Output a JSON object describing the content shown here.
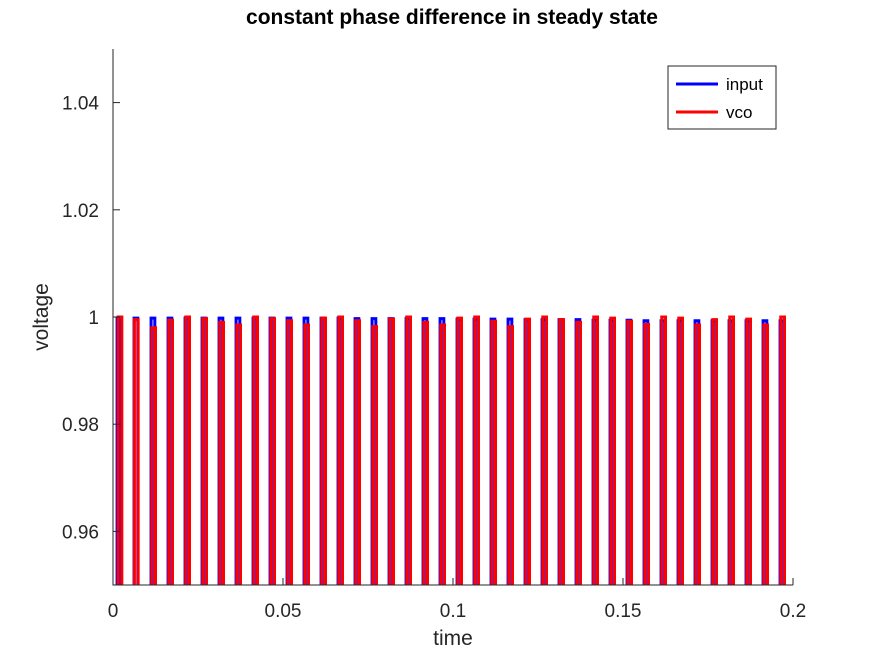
{
  "chart_data": {
    "type": "line",
    "title": "constant phase difference in steady state",
    "xlabel": "time",
    "ylabel": "voltage",
    "xlim": [
      0,
      0.2
    ],
    "ylim": [
      0.95,
      1.05
    ],
    "xticks": [
      0,
      0.05,
      0.1,
      0.15,
      0.2
    ],
    "xtick_labels": [
      "0",
      "0.05",
      "0.1",
      "0.15",
      "0.2"
    ],
    "yticks": [
      0.96,
      0.98,
      1.0,
      1.02,
      1.04
    ],
    "ytick_labels": [
      "0.96",
      "0.98",
      "1",
      "1.02",
      "1.04"
    ],
    "grid": false,
    "legend_position": "top-right",
    "series": [
      {
        "name": "input",
        "color": "#0000ff",
        "pulse_times": [
          0.0012,
          0.0062,
          0.0112,
          0.0162,
          0.0212,
          0.0262,
          0.0312,
          0.0362,
          0.0412,
          0.0462,
          0.0512,
          0.0562,
          0.0612,
          0.0662,
          0.0712,
          0.0762,
          0.0812,
          0.0862,
          0.0912,
          0.0962,
          0.1012,
          0.1062,
          0.1112,
          0.1162,
          0.1212,
          0.1262,
          0.1312,
          0.1362,
          0.1412,
          0.1462,
          0.1512,
          0.1562,
          0.1612,
          0.1662,
          0.1712,
          0.1762,
          0.1812,
          0.1862,
          0.1912,
          0.1962
        ],
        "pulse_peaks": [
          0.9998,
          0.9998,
          0.9998,
          0.9998,
          0.9998,
          0.9998,
          0.9998,
          0.9998,
          0.9998,
          0.9998,
          0.9998,
          0.9998,
          0.9998,
          0.9998,
          0.9997,
          0.9997,
          0.9997,
          0.9997,
          0.9997,
          0.9997,
          0.9996,
          0.9996,
          0.9996,
          0.9996,
          0.9995,
          0.9995,
          0.9995,
          0.9995,
          0.9994,
          0.9994,
          0.9994,
          0.9993,
          0.9993,
          0.9993,
          0.9993,
          0.9993,
          0.9993,
          0.9993,
          0.9993,
          0.9993
        ]
      },
      {
        "name": "vco",
        "color": "#ff0000",
        "pulse_times": [
          0.0015,
          0.0063,
          0.0114,
          0.0164,
          0.0214,
          0.0264,
          0.0314,
          0.0364,
          0.0414,
          0.0464,
          0.0514,
          0.0564,
          0.0614,
          0.0664,
          0.0714,
          0.0764,
          0.0814,
          0.0864,
          0.0914,
          0.0964,
          0.1014,
          0.1064,
          0.1114,
          0.1164,
          0.1214,
          0.1264,
          0.1314,
          0.1364,
          0.1414,
          0.1464,
          0.1514,
          0.1564,
          0.1614,
          0.1664,
          0.1714,
          0.1764,
          0.1814,
          0.1864,
          0.1914,
          0.1964
        ],
        "pulse_peaks": [
          1.0,
          0.9995,
          0.998,
          0.9994,
          1.0,
          0.9997,
          0.999,
          0.9985,
          1.0,
          0.9997,
          0.9993,
          0.9985,
          0.9998,
          1.0,
          0.9993,
          0.9982,
          0.9996,
          1.0,
          0.999,
          0.9985,
          0.9998,
          1.0,
          0.9992,
          0.9982,
          0.9996,
          1.0,
          0.9995,
          0.999,
          1.0,
          0.9998,
          0.9992,
          0.9986,
          1.0,
          0.9998,
          0.9985,
          0.9995,
          1.0,
          0.9996,
          0.9985,
          1.0
        ]
      }
    ]
  }
}
